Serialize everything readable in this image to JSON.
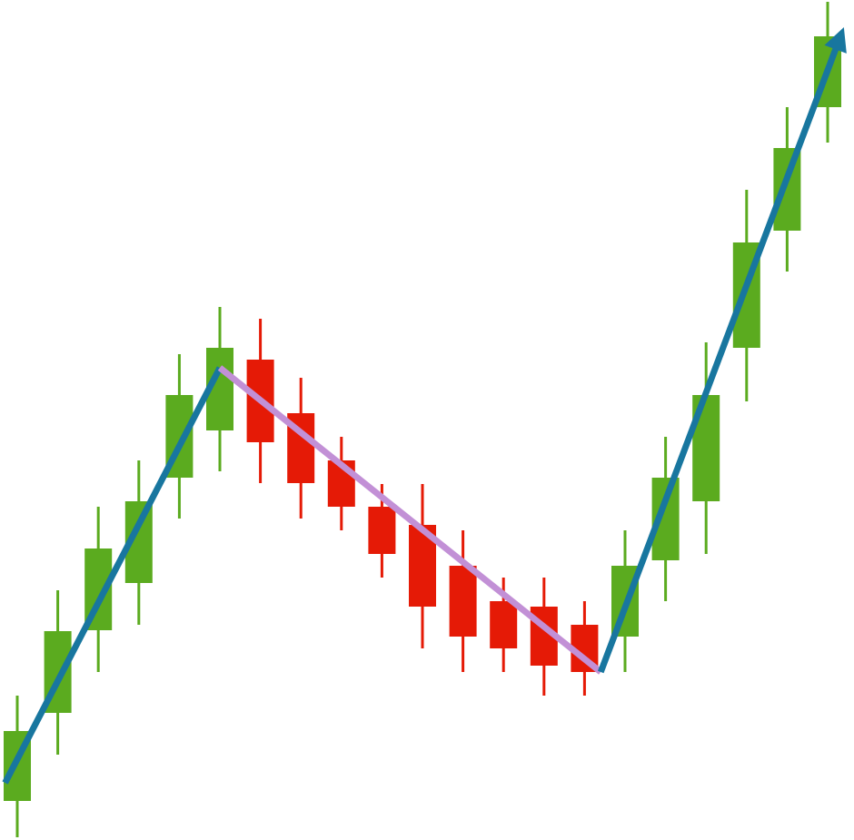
{
  "chart_data": {
    "type": "candlestick",
    "title": "",
    "xlabel": "",
    "ylabel": "",
    "grid": false,
    "legend": "none",
    "colors": {
      "up": "#5bab1f",
      "down": "#e51a06",
      "up_trend": "#18769f",
      "down_trend": "#c290d6"
    },
    "ylim": [
      0,
      925
    ],
    "candles": [
      {
        "i": 0,
        "dir": "up",
        "open": 43,
        "close": 120,
        "high": 159,
        "low": 3
      },
      {
        "i": 1,
        "dir": "up",
        "open": 140,
        "close": 230,
        "high": 275,
        "low": 94
      },
      {
        "i": 2,
        "dir": "up",
        "open": 231,
        "close": 321,
        "high": 367,
        "low": 185
      },
      {
        "i": 3,
        "dir": "up",
        "open": 283,
        "close": 373,
        "high": 418,
        "low": 237
      },
      {
        "i": 4,
        "dir": "up",
        "open": 399,
        "close": 490,
        "high": 535,
        "low": 354
      },
      {
        "i": 5,
        "dir": "up",
        "open": 451,
        "close": 542,
        "high": 587,
        "low": 406
      },
      {
        "i": 6,
        "dir": "down",
        "open": 529,
        "close": 438,
        "high": 574,
        "low": 393
      },
      {
        "i": 7,
        "dir": "down",
        "open": 470,
        "close": 393,
        "high": 509,
        "low": 354
      },
      {
        "i": 8,
        "dir": "down",
        "open": 418,
        "close": 367,
        "high": 444,
        "low": 341
      },
      {
        "i": 9,
        "dir": "down",
        "open": 367,
        "close": 315,
        "high": 392,
        "low": 289
      },
      {
        "i": 10,
        "dir": "down",
        "open": 347,
        "close": 257,
        "high": 392,
        "low": 211
      },
      {
        "i": 11,
        "dir": "down",
        "open": 302,
        "close": 224,
        "high": 341,
        "low": 185
      },
      {
        "i": 12,
        "dir": "down",
        "open": 263,
        "close": 211,
        "high": 289,
        "low": 185
      },
      {
        "i": 13,
        "dir": "down",
        "open": 257,
        "close": 192,
        "high": 289,
        "low": 159
      },
      {
        "i": 14,
        "dir": "down",
        "open": 237,
        "close": 185,
        "high": 263,
        "low": 159
      },
      {
        "i": 15,
        "dir": "up",
        "open": 224,
        "close": 302,
        "high": 341,
        "low": 185
      },
      {
        "i": 16,
        "dir": "up",
        "open": 308,
        "close": 399,
        "high": 444,
        "low": 263
      },
      {
        "i": 17,
        "dir": "up",
        "open": 373,
        "close": 490,
        "high": 548,
        "low": 315
      },
      {
        "i": 18,
        "dir": "up",
        "open": 542,
        "close": 658,
        "high": 716,
        "low": 483
      },
      {
        "i": 19,
        "dir": "up",
        "open": 671,
        "close": 762,
        "high": 807,
        "low": 626
      },
      {
        "i": 20,
        "dir": "up",
        "open": 807,
        "close": 885,
        "high": 923,
        "low": 768
      }
    ],
    "trend_lines": [
      {
        "kind": "up",
        "from": {
          "i": -0.3,
          "y": 63
        },
        "to": {
          "i": 5.0,
          "y": 520
        },
        "arrow": false
      },
      {
        "kind": "down",
        "from": {
          "i": 5.0,
          "y": 520
        },
        "to": {
          "i": 14.4,
          "y": 185
        },
        "arrow": false
      },
      {
        "kind": "up",
        "from": {
          "i": 14.4,
          "y": 185
        },
        "to": {
          "i": 20.4,
          "y": 895
        },
        "arrow": true
      }
    ]
  }
}
